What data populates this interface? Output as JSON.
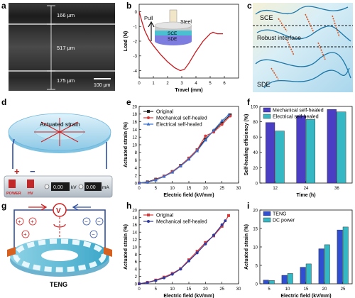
{
  "panels": {
    "a": {
      "letter": "a",
      "measurements": [
        "166 μm",
        "517 μm",
        "175 μm"
      ],
      "scale_bar": "100 μm"
    },
    "b": {
      "letter": "b"
    },
    "c": {
      "letter": "c",
      "labels": {
        "top": "SCE",
        "middle": "Robust interface",
        "bottom": "SDE"
      }
    },
    "d": {
      "letter": "d",
      "disk_label": "Actuated strain",
      "device": {
        "power_label": "POWER",
        "hv_label": "HV",
        "kv_value": "0.00",
        "kv_unit": "kV",
        "ma_value": "0.00",
        "ma_unit": "mA",
        "plus": "+",
        "minus": "−"
      }
    },
    "e": {
      "letter": "e"
    },
    "f": {
      "letter": "f"
    },
    "g": {
      "letter": "g",
      "teng_label": "TENG",
      "voltmeter": "V",
      "plus": "+",
      "minus": "−"
    },
    "h": {
      "letter": "h"
    },
    "i": {
      "letter": "i"
    }
  },
  "chart_data": [
    {
      "panel": "b",
      "type": "line",
      "xlabel": "Travel (mm)",
      "ylabel": "Load (N)",
      "xlim": [
        0,
        7
      ],
      "ylim": [
        -4.5,
        0.5
      ],
      "xticks": [
        0,
        1,
        2,
        3,
        4,
        5,
        6
      ],
      "yticks": [
        0,
        -1,
        -2,
        -3,
        -4
      ],
      "grid": false,
      "inset_labels": [
        "Pull",
        "Steel",
        "SCE",
        "SDE"
      ],
      "series": [
        {
          "color": "#c8191e",
          "x": [
            0,
            0.2,
            0.4,
            0.7,
            1.0,
            1.5,
            2.0,
            2.5,
            2.9,
            3.2,
            3.5,
            4.0,
            4.5,
            5.0,
            5.2,
            5.5,
            5.9
          ],
          "y": [
            0,
            -0.7,
            -1.3,
            -1.9,
            -2.3,
            -2.9,
            -3.4,
            -3.8,
            -4.0,
            -3.9,
            -3.5,
            -2.7,
            -2.0,
            -1.5,
            -1.4,
            -1.5,
            -1.5
          ]
        }
      ]
    },
    {
      "panel": "e",
      "type": "line",
      "xlabel": "Electric field (kV/mm)",
      "ylabel": "Actuated strain (%)",
      "xlim": [
        0,
        30
      ],
      "ylim": [
        0,
        20
      ],
      "xticks": [
        0,
        5,
        10,
        15,
        20,
        25,
        30
      ],
      "yticks": [
        0,
        2,
        4,
        6,
        8,
        10,
        12,
        14,
        16,
        18,
        20
      ],
      "legend": "top-left",
      "series": [
        {
          "name": "Original",
          "color": "#222222",
          "marker": "square",
          "x": [
            0,
            2.5,
            5,
            7.5,
            10,
            12.5,
            15,
            17.5,
            20,
            22.5,
            25,
            27.5
          ],
          "y": [
            0,
            0.3,
            1.0,
            1.8,
            3.0,
            4.6,
            6.5,
            8.7,
            11.5,
            13.6,
            15.8,
            17.8
          ]
        },
        {
          "name": "Mechanical self-healed",
          "color": "#d63a3a",
          "marker": "circle",
          "x": [
            0,
            2.5,
            5,
            7.5,
            10,
            12.5,
            15,
            17.5,
            20,
            22.5,
            25,
            27.5
          ],
          "y": [
            0,
            0.2,
            0.9,
            1.8,
            3.0,
            4.5,
            6.5,
            8.7,
            12.3,
            13.3,
            15.3,
            17.5
          ]
        },
        {
          "name": "Electrical self-healed",
          "color": "#3a6fd0",
          "marker": "triangle",
          "x": [
            0,
            2.5,
            5,
            7.5,
            10,
            12.5,
            15,
            17.5,
            20,
            22.5,
            25,
            27
          ],
          "y": [
            0,
            0.2,
            0.8,
            1.7,
            2.8,
            4.4,
            6.2,
            8.4,
            11.2,
            13.8,
            16.3,
            17.8
          ]
        }
      ]
    },
    {
      "panel": "f",
      "type": "bar",
      "xlabel": "Time (h)",
      "ylabel": "Self-healing efficiency (%)",
      "ylim": [
        0,
        100
      ],
      "yticks": [
        0,
        20,
        40,
        60,
        80,
        100
      ],
      "categories": [
        "12",
        "24",
        "36"
      ],
      "legend": "top-left",
      "series": [
        {
          "name": "Mechanical self-healed",
          "color": "#4a3fc4",
          "values": [
            79,
            88,
            96
          ]
        },
        {
          "name": "Electrical self-healed",
          "color": "#35b7c4",
          "values": [
            68,
            83,
            93
          ]
        }
      ]
    },
    {
      "panel": "h",
      "type": "line",
      "xlabel": "Electric field (kV/mm)",
      "ylabel": "Actuated strain (%)",
      "xlim": [
        0,
        30
      ],
      "ylim": [
        0,
        20
      ],
      "xticks": [
        0,
        5,
        10,
        15,
        20,
        25,
        30
      ],
      "yticks": [
        0,
        2,
        4,
        6,
        8,
        10,
        12,
        14,
        16,
        18,
        20
      ],
      "legend": "top-left",
      "series": [
        {
          "name": "Original",
          "color": "#d63a3a",
          "marker": "square",
          "x": [
            0,
            2.5,
            5,
            7.5,
            10,
            12.5,
            15,
            17.5,
            20,
            22.5,
            25,
            27
          ],
          "y": [
            0,
            0.4,
            1.0,
            1.8,
            2.8,
            4.1,
            6.5,
            8.8,
            11.2,
            13.0,
            15.6,
            18.5
          ]
        },
        {
          "name": "Mechanical self-healed",
          "color": "#2f3a9e",
          "marker": "circle",
          "x": [
            0,
            2.5,
            5,
            7.5,
            10,
            12.5,
            15,
            17.5,
            20,
            22.5,
            25,
            26
          ],
          "y": [
            0,
            0.3,
            0.9,
            1.6,
            2.6,
            4.0,
            6.2,
            8.4,
            10.8,
            13.2,
            16.0,
            17.1
          ]
        }
      ]
    },
    {
      "panel": "i",
      "type": "bar",
      "xlabel": "Electric field (kV/mm)",
      "ylabel": "Actuated strain (%)",
      "ylim": [
        0,
        20
      ],
      "yticks": [
        0,
        5,
        10,
        15,
        20
      ],
      "categories": [
        "5",
        "10",
        "15",
        "20",
        "25"
      ],
      "legend": "top-left",
      "series": [
        {
          "name": "TENG",
          "color": "#2f4fd0",
          "values": [
            1.0,
            2.3,
            4.5,
            9.5,
            14.6
          ]
        },
        {
          "name": "DC power",
          "color": "#35b7c4",
          "values": [
            0.9,
            2.8,
            5.4,
            10.6,
            15.4
          ]
        }
      ]
    }
  ]
}
